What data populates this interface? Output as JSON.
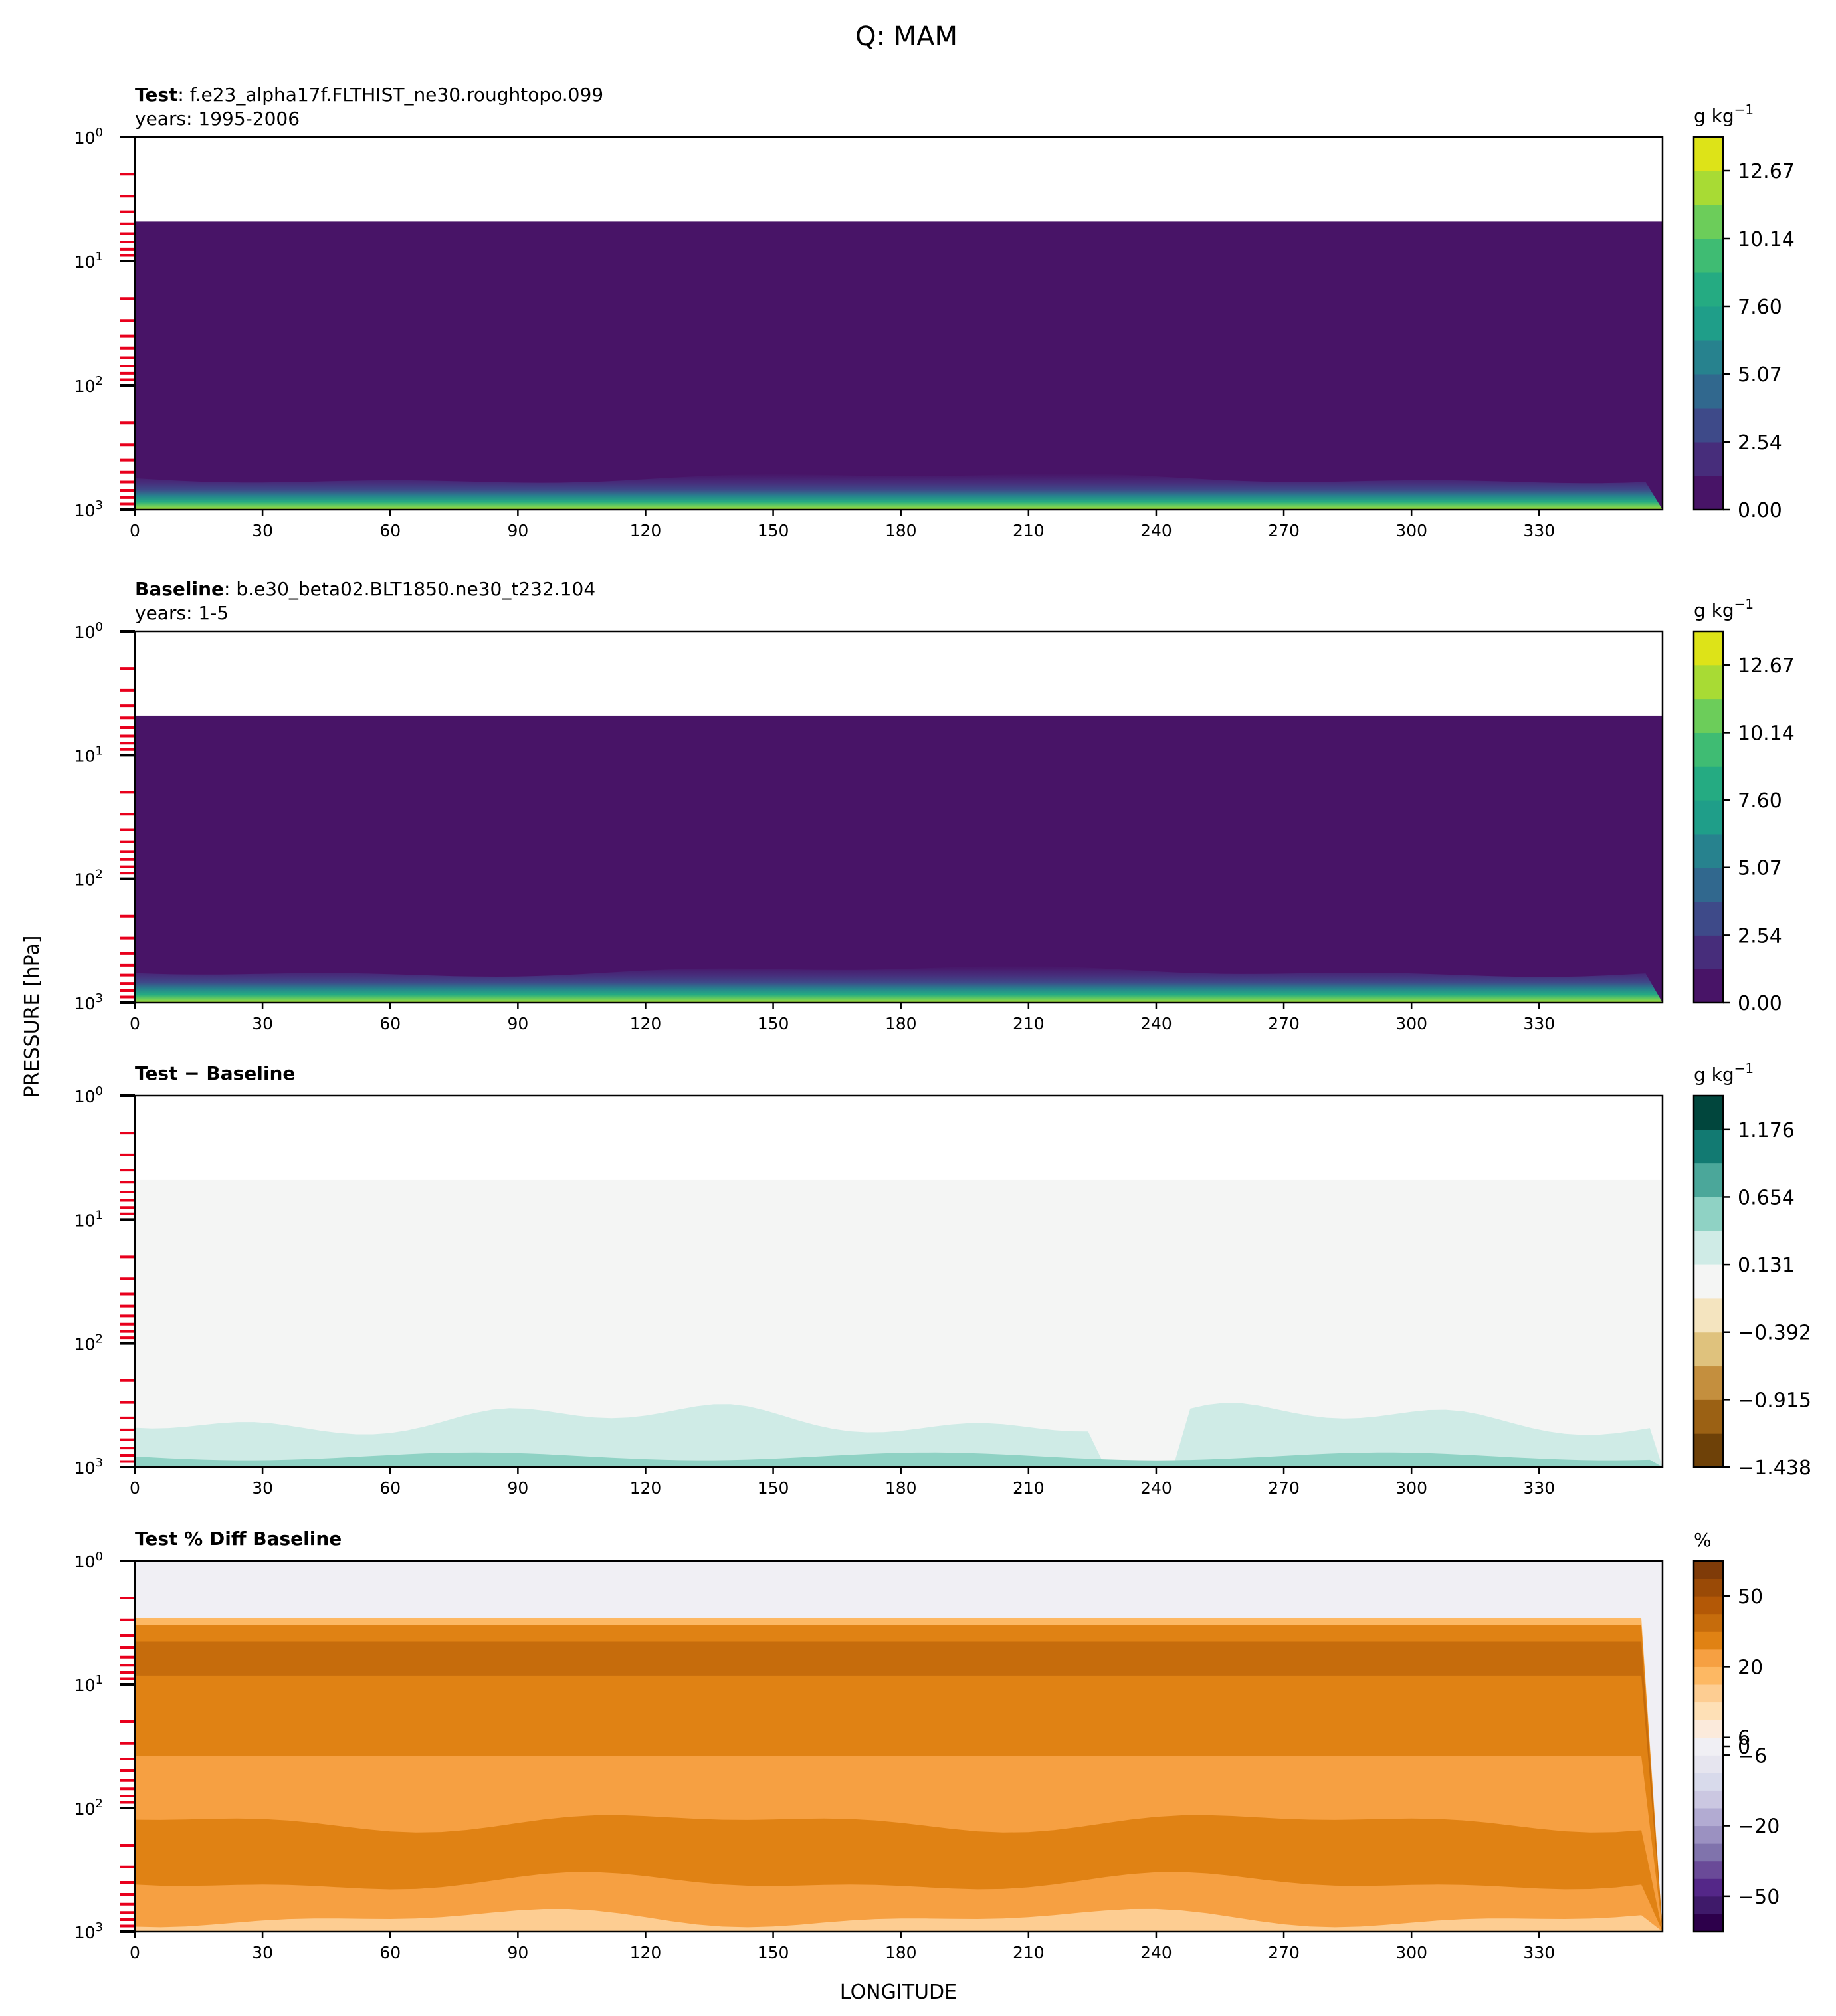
{
  "figure": {
    "title": "Q: MAM",
    "ylabel": "PRESSURE [hPa]",
    "xlabel": "LONGITUDE"
  },
  "chart_data": [
    {
      "type": "heatmap",
      "title_bold": "Test",
      "title_rest": ": f.e23_alpha17f.FLTHIST_ne30.roughtopo.099",
      "subtitle": "years: 1995-2006",
      "units": "g kg",
      "units_sup": "−1",
      "xlim": [
        0,
        359
      ],
      "x_ticks": [
        "0",
        "30",
        "60",
        "90",
        "120",
        "150",
        "180",
        "210",
        "240",
        "270",
        "300",
        "330"
      ],
      "y_scale": "log",
      "ylim": [
        1000,
        1
      ],
      "y_tick_exps": [
        "0",
        "1",
        "2",
        "3"
      ],
      "colorbar_labels": [
        "0.00",
        "2.54",
        "5.07",
        "7.60",
        "10.14",
        "12.67"
      ],
      "colorbar_colors": [
        "#481467",
        "#472d7b",
        "#3e4a89",
        "#31688e",
        "#27828e",
        "#1f9e89",
        "#25ab82",
        "#3fbc73",
        "#6ccd5a",
        "#a8db34",
        "#dde318"
      ],
      "field": "specific humidity, near 0 above ~900 hPa, increasing to ~14 near 1000 hPa"
    },
    {
      "type": "heatmap",
      "title_bold": "Baseline",
      "title_rest": ": b.e30_beta02.BLT1850.ne30_t232.104",
      "subtitle": "years: 1-5",
      "units": "g kg",
      "units_sup": "−1",
      "xlim": [
        0,
        359
      ],
      "x_ticks": [
        "0",
        "30",
        "60",
        "90",
        "120",
        "150",
        "180",
        "210",
        "240",
        "270",
        "300",
        "330"
      ],
      "y_scale": "log",
      "ylim": [
        1000,
        1
      ],
      "y_tick_exps": [
        "0",
        "1",
        "2",
        "3"
      ],
      "colorbar_labels": [
        "0.00",
        "2.54",
        "5.07",
        "7.60",
        "10.14",
        "12.67"
      ],
      "colorbar_colors": [
        "#481467",
        "#472d7b",
        "#3e4a89",
        "#31688e",
        "#27828e",
        "#1f9e89",
        "#25ab82",
        "#3fbc73",
        "#6ccd5a",
        "#a8db34",
        "#dde318"
      ]
    },
    {
      "type": "heatmap",
      "title_bold": "Test − Baseline",
      "title_rest": "",
      "subtitle": "",
      "units": "g kg",
      "units_sup": "−1",
      "xlim": [
        0,
        359
      ],
      "x_ticks": [
        "0",
        "30",
        "60",
        "90",
        "120",
        "150",
        "180",
        "210",
        "240",
        "270",
        "300",
        "330"
      ],
      "y_scale": "log",
      "ylim": [
        1000,
        1
      ],
      "y_tick_exps": [
        "0",
        "1",
        "2",
        "3"
      ],
      "colorbar_labels": [
        "−1.438",
        "−0.915",
        "−0.392",
        "0.131",
        "0.654",
        "1.176"
      ],
      "colorbar_colors": [
        "#6e4108",
        "#9b6114",
        "#c48f3e",
        "#dfc27d",
        "#f4e4bf",
        "#f4f5f4",
        "#cfebe6",
        "#8fd2c4",
        "#4ba79a",
        "#127a72",
        "#01463d"
      ]
    },
    {
      "type": "heatmap",
      "title_bold": "Test % Diff Baseline",
      "title_rest": "",
      "subtitle": "",
      "units": "%",
      "units_sup": "",
      "xlim": [
        0,
        359
      ],
      "x_ticks": [
        "0",
        "30",
        "60",
        "90",
        "120",
        "150",
        "180",
        "210",
        "240",
        "270",
        "300",
        "330"
      ],
      "y_scale": "log",
      "ylim": [
        1000,
        1
      ],
      "y_tick_exps": [
        "0",
        "1",
        "2",
        "3"
      ],
      "colorbar_labels": [
        "−50",
        "−20",
        "−6",
        "0",
        "6",
        "20",
        "50"
      ],
      "colorbar_colors": [
        "#2d004b",
        "#3f1a6a",
        "#542788",
        "#6a4a98",
        "#8073ac",
        "#9b91c1",
        "#b2abd2",
        "#cbc7e1",
        "#d8daeb",
        "#e6e5ef",
        "#f0eff4",
        "#fbeadb",
        "#fee0b6",
        "#fdcd92",
        "#fdb863",
        "#f6a042",
        "#e08214",
        "#c66c0c",
        "#b35806",
        "#9a4a06",
        "#7f3b08"
      ]
    }
  ]
}
